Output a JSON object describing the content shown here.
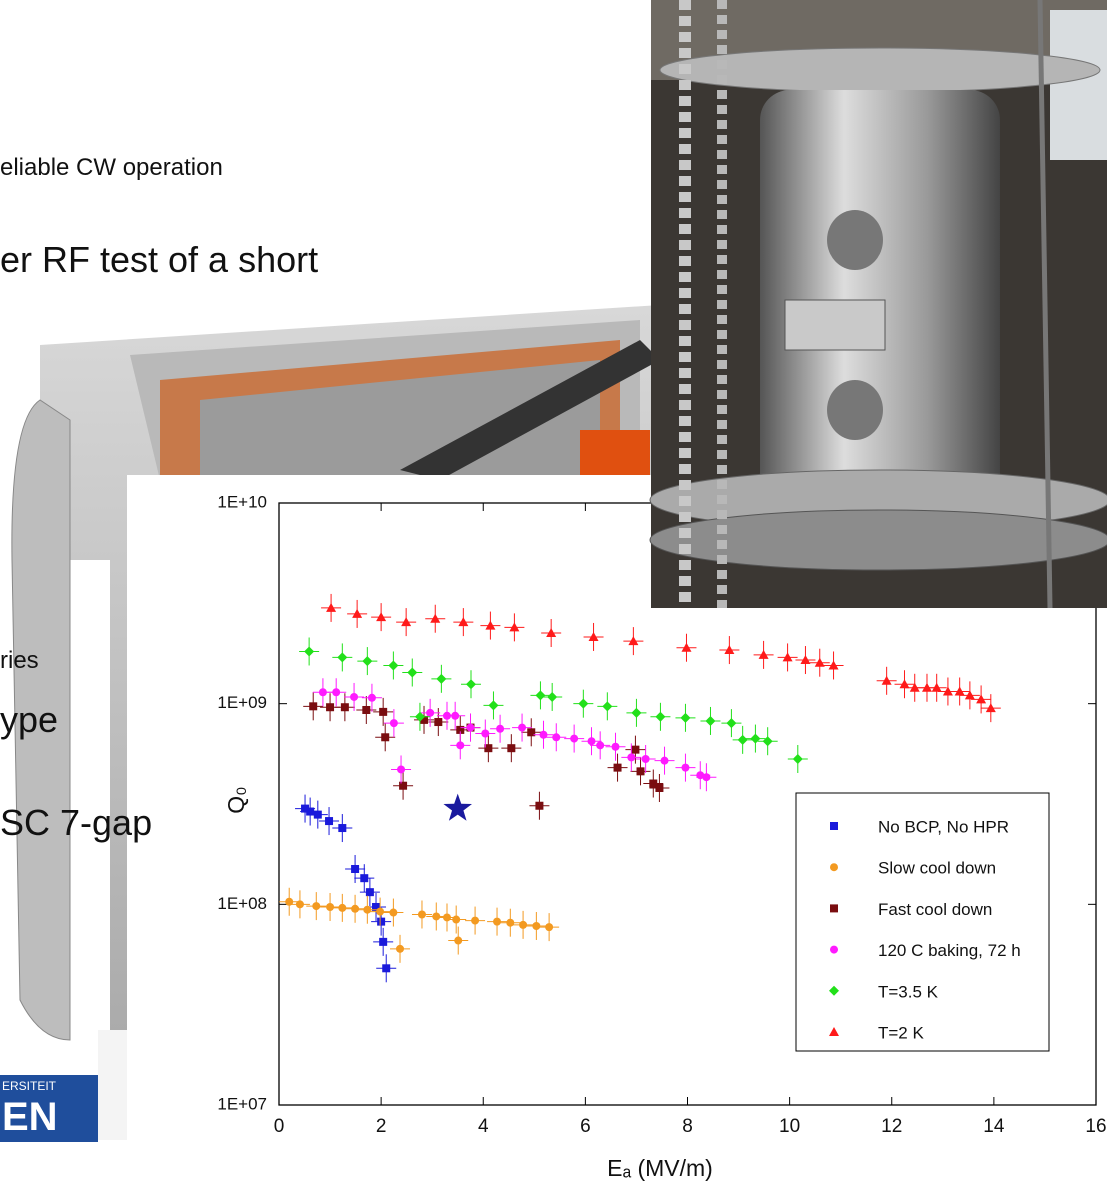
{
  "slide": {
    "bullets": [
      "eliable CW operation",
      "er RF test of a short",
      "ries",
      "ype",
      "SC 7-gap"
    ],
    "logo": [
      "ERSITEIT",
      "EN"
    ]
  },
  "chart_data": {
    "type": "scatter",
    "x_label": "Eₐ (MV/m)",
    "y_label": "Q₀",
    "log_y": true,
    "legend": "lower right",
    "xlim": [
      0,
      16
    ],
    "xticks": [
      0,
      2,
      4,
      6,
      8,
      10,
      12,
      14,
      16
    ],
    "ylim": [
      10000000,
      10000000000
    ],
    "yticks": [
      {
        "value": 10000000,
        "label": "1E+07"
      },
      {
        "value": 100000000,
        "label": "1E+08"
      },
      {
        "value": 1000000000,
        "label": "1E+09"
      },
      {
        "value": 10000000000,
        "label": "1E+10"
      }
    ],
    "star": {
      "x": 3.5,
      "y": 300000000,
      "color": "#1a1a9e"
    },
    "series": [
      {
        "name": "No BCP, No HPR",
        "color": "#1a1adb",
        "marker": "square",
        "x": [
          0.51,
          0.61,
          0.76,
          0.98,
          1.24,
          1.49,
          1.67,
          1.78,
          1.9,
          2.0,
          2.04,
          2.1
        ],
        "values": [
          300000000,
          290000000,
          280000000,
          260000000,
          240000000,
          150000000,
          135000000,
          115000000,
          97000000,
          82000000,
          65000000,
          48000000
        ]
      },
      {
        "name": "Slow cool down",
        "color": "#f39a21",
        "marker": "circle",
        "x": [
          0.2,
          0.41,
          0.73,
          1.0,
          1.24,
          1.49,
          1.73,
          1.98,
          2.24,
          2.37,
          2.8,
          3.08,
          3.29,
          3.47,
          3.51,
          3.84,
          4.27,
          4.53,
          4.78,
          5.04,
          5.29
        ],
        "values": [
          103000000,
          100000000,
          98000000,
          97000000,
          96000000,
          95000000,
          94000000,
          92000000,
          91000000,
          60000000,
          89000000,
          87000000,
          86000000,
          84000000,
          66000000,
          83000000,
          82000000,
          81000000,
          79000000,
          78000000,
          77000000
        ]
      },
      {
        "name": "Fast cool down",
        "color": "#7a0d10",
        "marker": "square",
        "x": [
          0.67,
          1.0,
          1.29,
          1.71,
          2.04,
          2.08,
          2.43,
          2.84,
          3.12,
          3.55,
          3.75,
          4.1,
          4.55,
          4.94,
          5.1,
          6.63,
          6.98,
          7.08,
          7.33,
          7.45
        ],
        "values": [
          970000000,
          960000000,
          960000000,
          930000000,
          910000000,
          680000000,
          390000000,
          830000000,
          810000000,
          740000000,
          760000000,
          600000000,
          600000000,
          720000000,
          310000000,
          480000000,
          590000000,
          460000000,
          400000000,
          380000000
        ]
      },
      {
        "name": "120 C baking, 72 h",
        "color": "#ff1aff",
        "marker": "circle",
        "x": [
          0.86,
          1.12,
          1.47,
          1.82,
          2.25,
          2.39,
          2.96,
          3.29,
          3.45,
          3.55,
          3.75,
          4.04,
          4.33,
          4.76,
          5.18,
          5.43,
          5.78,
          6.12,
          6.29,
          6.59,
          6.9,
          7.18,
          7.55,
          7.96,
          8.25,
          8.37
        ],
        "values": [
          1140000000,
          1140000000,
          1080000000,
          1070000000,
          800000000,
          470000000,
          900000000,
          870000000,
          870000000,
          620000000,
          760000000,
          710000000,
          750000000,
          760000000,
          700000000,
          680000000,
          670000000,
          650000000,
          620000000,
          610000000,
          540000000,
          530000000,
          520000000,
          480000000,
          440000000,
          430000000
        ]
      },
      {
        "name": "T=3.5 K",
        "color": "#22e01a",
        "marker": "diamond",
        "x": [
          0.59,
          1.24,
          1.73,
          2.24,
          2.61,
          2.76,
          3.18,
          3.76,
          4.2,
          5.12,
          5.35,
          5.96,
          6.43,
          7.0,
          7.47,
          7.96,
          8.45,
          8.86,
          9.08,
          9.33,
          9.57,
          10.16
        ],
        "values": [
          1820000000,
          1700000000,
          1630000000,
          1550000000,
          1430000000,
          860000000,
          1330000000,
          1250000000,
          980000000,
          1100000000,
          1080000000,
          1000000000,
          970000000,
          900000000,
          860000000,
          850000000,
          820000000,
          800000000,
          660000000,
          670000000,
          650000000,
          530000000
        ]
      },
      {
        "name": "T=2 K",
        "color": "#ff1a1a",
        "marker": "triangle",
        "x": [
          1.02,
          1.53,
          2.0,
          2.49,
          3.06,
          3.61,
          4.14,
          4.61,
          5.33,
          6.16,
          6.94,
          7.98,
          8.82,
          9.49,
          9.96,
          10.31,
          10.59,
          10.86,
          11.9,
          12.25,
          12.45,
          12.69,
          12.88,
          13.1,
          13.33,
          13.53,
          13.75,
          13.94
        ],
        "values": [
          3000000000,
          2800000000,
          2700000000,
          2550000000,
          2650000000,
          2550000000,
          2450000000,
          2400000000,
          2250000000,
          2150000000,
          2050000000,
          1900000000,
          1850000000,
          1750000000,
          1700000000,
          1650000000,
          1600000000,
          1550000000,
          1300000000,
          1250000000,
          1200000000,
          1200000000,
          1200000000,
          1150000000,
          1150000000,
          1100000000,
          1050000000,
          950000000
        ]
      }
    ]
  }
}
